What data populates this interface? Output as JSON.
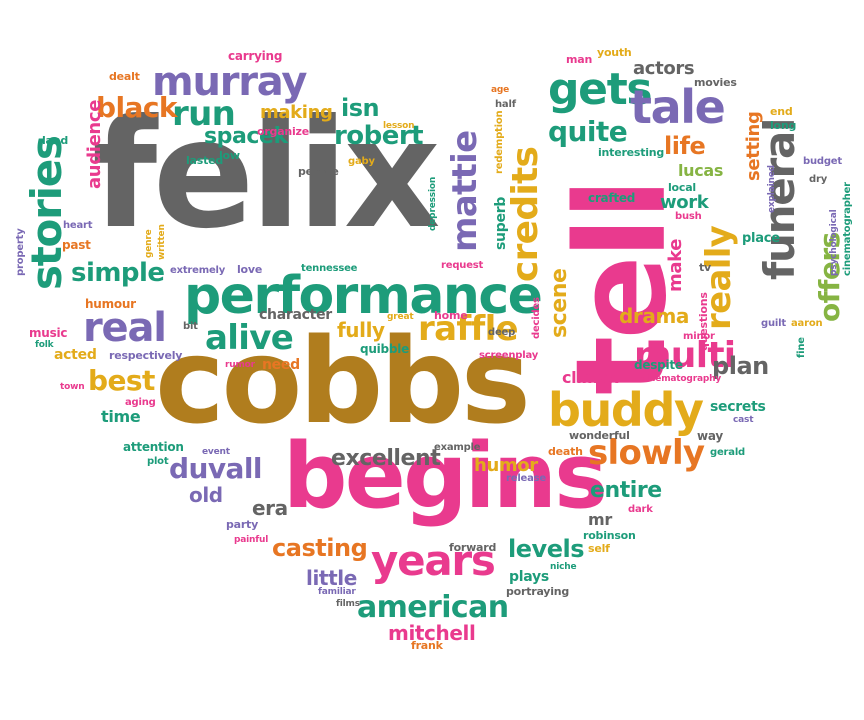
{
  "palette": {
    "gray": "#646464",
    "pink": "#e93a8e",
    "teal": "#1d9c7a",
    "purple": "#7a69b4",
    "orange": "#e77623",
    "brown": "#b07d1e",
    "gold": "#e3ab1a",
    "green": "#86b443",
    "red": "#d8412f"
  },
  "words": [
    {
      "text": "felix",
      "color": "gray"
    },
    {
      "text": "cobbs",
      "color": "brown"
    },
    {
      "text": "begins",
      "color": "pink"
    },
    {
      "text": "tell",
      "color": "pink"
    },
    {
      "text": "performance",
      "color": "teal"
    },
    {
      "text": "murray",
      "color": "purple"
    },
    {
      "text": "stories",
      "color": "teal"
    },
    {
      "text": "years",
      "color": "pink"
    },
    {
      "text": "buddy",
      "color": "gold"
    },
    {
      "text": "real",
      "color": "purple"
    },
    {
      "text": "gets",
      "color": "teal"
    },
    {
      "text": "tale",
      "color": "purple"
    },
    {
      "text": "funeral",
      "color": "gray"
    },
    {
      "text": "credits",
      "color": "gold"
    },
    {
      "text": "raffle",
      "color": "gold"
    },
    {
      "text": "multi",
      "color": "pink"
    },
    {
      "text": "slowly",
      "color": "orange"
    },
    {
      "text": "mattie",
      "color": "purple"
    },
    {
      "text": "american",
      "color": "teal"
    },
    {
      "text": "really",
      "color": "gold"
    },
    {
      "text": "offers",
      "color": "green"
    },
    {
      "text": "alive",
      "color": "teal"
    },
    {
      "text": "run",
      "color": "teal"
    },
    {
      "text": "black",
      "color": "orange"
    },
    {
      "text": "robert",
      "color": "teal"
    },
    {
      "text": "quite",
      "color": "teal"
    },
    {
      "text": "simple",
      "color": "teal"
    },
    {
      "text": "best",
      "color": "gold"
    },
    {
      "text": "duvall",
      "color": "purple"
    },
    {
      "text": "casting",
      "color": "orange"
    },
    {
      "text": "levels",
      "color": "teal"
    },
    {
      "text": "entire",
      "color": "teal"
    },
    {
      "text": "scene",
      "color": "gold"
    },
    {
      "text": "isn",
      "color": "teal"
    },
    {
      "text": "life",
      "color": "orange"
    },
    {
      "text": "actors",
      "color": "gray"
    },
    {
      "text": "spacek",
      "color": "teal"
    },
    {
      "text": "making",
      "color": "gold"
    },
    {
      "text": "audience",
      "color": "pink"
    },
    {
      "text": "make",
      "color": "pink"
    },
    {
      "text": "setting",
      "color": "orange"
    },
    {
      "text": "plan",
      "color": "gray"
    },
    {
      "text": "excellent",
      "color": "gray"
    },
    {
      "text": "humor",
      "color": "gold"
    },
    {
      "text": "old",
      "color": "purple"
    },
    {
      "text": "era",
      "color": "gray"
    },
    {
      "text": "little",
      "color": "purple"
    },
    {
      "text": "mitchell",
      "color": "pink"
    },
    {
      "text": "fully",
      "color": "gold"
    },
    {
      "text": "drama",
      "color": "gold"
    },
    {
      "text": "work",
      "color": "teal"
    },
    {
      "text": "lucas",
      "color": "green"
    },
    {
      "text": "climax",
      "color": "pink"
    },
    {
      "text": "secrets",
      "color": "teal"
    },
    {
      "text": "time",
      "color": "teal"
    },
    {
      "text": "plays",
      "color": "teal"
    },
    {
      "text": "superb",
      "color": "teal"
    },
    {
      "text": "mr",
      "color": "gray"
    },
    {
      "text": "character",
      "color": "gray"
    },
    {
      "text": "acted",
      "color": "gold"
    },
    {
      "text": "music",
      "color": "pink"
    },
    {
      "text": "humour",
      "color": "orange"
    },
    {
      "text": "quibble",
      "color": "teal"
    },
    {
      "text": "need",
      "color": "orange"
    },
    {
      "text": "respectively",
      "color": "purple"
    },
    {
      "text": "attention",
      "color": "teal"
    },
    {
      "text": "carrying",
      "color": "pink"
    },
    {
      "text": "dealt",
      "color": "orange"
    },
    {
      "text": "youth",
      "color": "gold"
    },
    {
      "text": "man",
      "color": "pink"
    },
    {
      "text": "movies",
      "color": "gray"
    },
    {
      "text": "age",
      "color": "orange"
    },
    {
      "text": "half",
      "color": "gray"
    },
    {
      "text": "redemption",
      "color": "gold"
    },
    {
      "text": "lesson",
      "color": "gold"
    },
    {
      "text": "organize",
      "color": "pink"
    },
    {
      "text": "land",
      "color": "teal"
    },
    {
      "text": "low",
      "color": "teal"
    },
    {
      "text": "lasted",
      "color": "teal"
    },
    {
      "text": "people",
      "color": "gray"
    },
    {
      "text": "gaby",
      "color": "gold"
    },
    {
      "text": "interesting",
      "color": "teal"
    },
    {
      "text": "crafted",
      "color": "teal"
    },
    {
      "text": "end",
      "color": "gold"
    },
    {
      "text": "long",
      "color": "teal"
    },
    {
      "text": "budget",
      "color": "purple"
    },
    {
      "text": "dry",
      "color": "gray"
    },
    {
      "text": "local",
      "color": "teal"
    },
    {
      "text": "bush",
      "color": "pink"
    },
    {
      "text": "explained",
      "color": "purple"
    },
    {
      "text": "psychological",
      "color": "purple"
    },
    {
      "text": "cinematographer",
      "color": "teal"
    },
    {
      "text": "place",
      "color": "teal"
    },
    {
      "text": "tv",
      "color": "gray"
    },
    {
      "text": "questions",
      "color": "pink"
    },
    {
      "text": "guilt",
      "color": "purple"
    },
    {
      "text": "aaron",
      "color": "gold"
    },
    {
      "text": "minor",
      "color": "pink"
    },
    {
      "text": "fine",
      "color": "teal"
    },
    {
      "text": "despite",
      "color": "teal"
    },
    {
      "text": "cinematography",
      "color": "pink"
    },
    {
      "text": "heart",
      "color": "purple"
    },
    {
      "text": "past",
      "color": "orange"
    },
    {
      "text": "property",
      "color": "purple"
    },
    {
      "text": "genre",
      "color": "gold"
    },
    {
      "text": "written",
      "color": "gold"
    },
    {
      "text": "extremely",
      "color": "purple"
    },
    {
      "text": "love",
      "color": "purple"
    },
    {
      "text": "tennessee",
      "color": "teal"
    },
    {
      "text": "request",
      "color": "pink"
    },
    {
      "text": "depression",
      "color": "teal"
    },
    {
      "text": "deep",
      "color": "gray"
    },
    {
      "text": "home",
      "color": "pink"
    },
    {
      "text": "great",
      "color": "gold"
    },
    {
      "text": "decides",
      "color": "pink"
    },
    {
      "text": "screenplay",
      "color": "pink"
    },
    {
      "text": "bit",
      "color": "gray"
    },
    {
      "text": "folk",
      "color": "teal"
    },
    {
      "text": "town",
      "color": "pink"
    },
    {
      "text": "rumor",
      "color": "pink"
    },
    {
      "text": "aging",
      "color": "pink"
    },
    {
      "text": "plot",
      "color": "teal"
    },
    {
      "text": "event",
      "color": "purple"
    },
    {
      "text": "example",
      "color": "gray"
    },
    {
      "text": "death",
      "color": "orange"
    },
    {
      "text": "release",
      "color": "purple"
    },
    {
      "text": "wonderful",
      "color": "gray"
    },
    {
      "text": "way",
      "color": "gray"
    },
    {
      "text": "cast",
      "color": "purple"
    },
    {
      "text": "gerald",
      "color": "teal"
    },
    {
      "text": "party",
      "color": "purple"
    },
    {
      "text": "painful",
      "color": "pink"
    },
    {
      "text": "dark",
      "color": "pink"
    },
    {
      "text": "robinson",
      "color": "teal"
    },
    {
      "text": "self",
      "color": "gold"
    },
    {
      "text": "forward",
      "color": "gray"
    },
    {
      "text": "niche",
      "color": "teal"
    },
    {
      "text": "familiar",
      "color": "purple"
    },
    {
      "text": "films",
      "color": "gray"
    },
    {
      "text": "portraying",
      "color": "gray"
    },
    {
      "text": "frank",
      "color": "orange"
    }
  ]
}
